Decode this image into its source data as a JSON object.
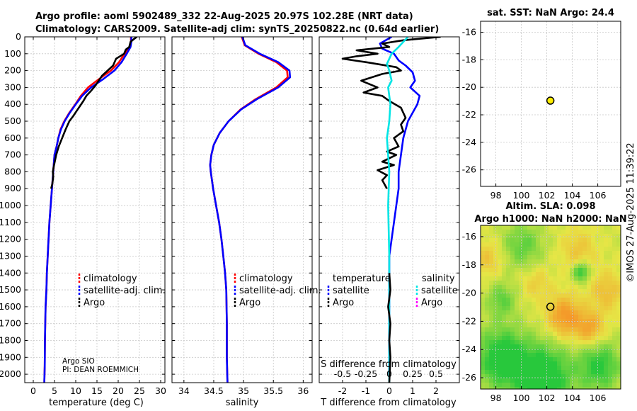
{
  "title_line1": "Argo profile: aoml 5902489_332 22-Aug-2025 20.97S 102.28E (NRT data)",
  "title_line2": "Climatology: CARS2009. Satellite-adj clim: synTS_20250822.nc (0.64d earlier)",
  "sst_title": "sat. SST: NaN Argo: 24.4",
  "sla_title1": "Altim. SLA: 0.098",
  "sla_title2": "Argo h1000: NaN h2000: NaN",
  "watermark": "©IMOS 27-Aug-2025 11:39:22",
  "credit_line1": "Argo SIO",
  "credit_line2": "PI: DEAN ROEMMICH",
  "colors": {
    "climatology": "#ff0000",
    "satellite": "#0000ff",
    "argo": "#000000",
    "sat_salinity": "#00e5e5",
    "argo_salinity": "#ff00ff",
    "marker": "#ffee00"
  },
  "chart_data": [
    {
      "type": "line",
      "id": "temperature",
      "xlabel": "temperature (deg C)",
      "ylabel": "",
      "xlim": [
        -2,
        31
      ],
      "ylim": [
        2050,
        0
      ],
      "xticks": [
        0,
        5,
        10,
        15,
        20,
        25,
        30
      ],
      "yticks": [
        0,
        100,
        200,
        300,
        400,
        500,
        600,
        700,
        800,
        900,
        1000,
        1100,
        1200,
        1300,
        1400,
        1500,
        1600,
        1700,
        1800,
        1900,
        2000
      ],
      "legend": [
        "climatology",
        "satellite-adj. clim.",
        "Argo"
      ],
      "series": [
        {
          "name": "climatology",
          "color": "#ff0000",
          "x": [
            23.0,
            23.0,
            22.8,
            21.5,
            20.2,
            18.3,
            15.5,
            12.9,
            11.2,
            9.9,
            8.5,
            7.3,
            6.4,
            5.9,
            5.5,
            5.0,
            4.7,
            4.4,
            4.1,
            3.8,
            3.6,
            3.4,
            3.2,
            3.1,
            2.9,
            2.75,
            2.7,
            2.6
          ],
          "y": [
            0,
            30,
            60,
            100,
            150,
            200,
            250,
            300,
            350,
            400,
            450,
            500,
            550,
            600,
            650,
            700,
            800,
            900,
            1000,
            1100,
            1200,
            1300,
            1400,
            1500,
            1600,
            1800,
            1950,
            2050
          ]
        },
        {
          "name": "satellite-adj. clim.",
          "color": "#0000ff",
          "x": [
            23.1,
            23.1,
            22.9,
            22.0,
            20.8,
            19.1,
            16.5,
            13.6,
            11.5,
            10.0,
            8.6,
            7.4,
            6.5,
            5.9,
            5.5,
            5.0,
            4.7,
            4.4,
            4.1,
            3.8,
            3.6,
            3.4,
            3.2,
            3.1,
            2.9,
            2.75,
            2.7,
            2.6
          ],
          "y": [
            0,
            30,
            60,
            100,
            150,
            200,
            250,
            300,
            350,
            400,
            450,
            500,
            550,
            600,
            650,
            700,
            800,
            900,
            1000,
            1100,
            1200,
            1300,
            1400,
            1500,
            1600,
            1800,
            1950,
            2050
          ]
        },
        {
          "name": "Argo",
          "color": "#000000",
          "x": [
            24.4,
            23.6,
            22.9,
            22.6,
            21.8,
            21.4,
            19.5,
            18.8,
            16.2,
            14.6,
            13.6,
            12.5,
            11.8,
            11.0,
            10.2,
            9.4,
            8.5,
            7.6,
            6.8,
            6.0,
            5.4,
            4.9,
            4.6,
            4.7,
            4.5,
            4.2
          ],
          "y": [
            0,
            15,
            30,
            60,
            75,
            100,
            130,
            170,
            230,
            290,
            320,
            350,
            380,
            410,
            440,
            470,
            500,
            550,
            600,
            650,
            700,
            760,
            800,
            830,
            870,
            900
          ]
        }
      ]
    },
    {
      "type": "line",
      "id": "salinity",
      "xlabel": "salinity",
      "ylabel": "",
      "xlim": [
        33.8,
        36.15
      ],
      "ylim": [
        2050,
        0
      ],
      "xticks": [
        34,
        34.5,
        35,
        35.5,
        36
      ],
      "legend": [
        "climatology",
        "satellite-adj. clim.",
        "Argo"
      ],
      "series": [
        {
          "name": "climatology",
          "color": "#ff0000",
          "x": [
            34.97,
            35.02,
            35.25,
            35.55,
            35.73,
            35.74,
            35.55,
            35.2,
            34.95,
            34.75,
            34.6,
            34.5,
            34.46,
            34.44,
            34.45,
            34.49,
            34.54,
            34.59,
            34.63,
            34.66,
            34.69,
            34.71,
            34.72,
            34.72,
            34.73
          ],
          "y": [
            0,
            50,
            100,
            150,
            200,
            240,
            300,
            370,
            430,
            500,
            570,
            640,
            700,
            760,
            800,
            900,
            1000,
            1100,
            1200,
            1300,
            1400,
            1500,
            1700,
            1900,
            2050
          ]
        },
        {
          "name": "satellite-adj. clim.",
          "color": "#0000ff",
          "x": [
            34.98,
            35.03,
            35.27,
            35.58,
            35.77,
            35.78,
            35.58,
            35.22,
            34.96,
            34.75,
            34.6,
            34.5,
            34.46,
            34.44,
            34.45,
            34.49,
            34.54,
            34.59,
            34.63,
            34.66,
            34.69,
            34.71,
            34.72,
            34.72,
            34.73
          ],
          "y": [
            0,
            50,
            100,
            150,
            200,
            240,
            300,
            370,
            430,
            500,
            570,
            640,
            700,
            760,
            800,
            900,
            1000,
            1100,
            1200,
            1300,
            1400,
            1500,
            1700,
            1900,
            2050
          ]
        }
      ]
    },
    {
      "type": "line",
      "id": "difference",
      "xlabel": "T difference from climatology",
      "xlabel_top": "S difference from climatology",
      "xlim": [
        -3,
        3
      ],
      "ylim": [
        2050,
        0
      ],
      "xticks": [
        -2,
        -1,
        0,
        1,
        2
      ],
      "s_ticks": [
        "-0.5",
        "-0.25",
        "0",
        "0.25",
        "0.5"
      ],
      "s_ticks_at": [
        -2,
        -1,
        0,
        1,
        2
      ],
      "legend_temperature_title": "temperature",
      "legend_salinity_title": "salinity",
      "legend_entries": [
        "satellite",
        "Argo",
        "satellite",
        "Argo"
      ],
      "series": [
        {
          "name": "satellite T diff",
          "color": "#0000ff",
          "x": [
            0.1,
            -0.4,
            -0.3,
            0.2,
            0.4,
            0.7,
            1.0,
            1.1,
            0.9,
            1.3,
            1.2,
            1.0,
            0.8,
            0.6,
            0.5,
            0.4,
            0.4,
            0.3,
            0.2,
            0.1,
            0.0,
            0.0,
            0.0
          ],
          "y": [
            0,
            40,
            70,
            100,
            140,
            170,
            210,
            260,
            300,
            350,
            400,
            450,
            500,
            600,
            700,
            800,
            900,
            1000,
            1100,
            1200,
            1300,
            1600,
            2000
          ]
        },
        {
          "name": "Argo T diff",
          "color": "#000000",
          "x": [
            2.2,
            0.6,
            -0.3,
            0.0,
            -1.4,
            -0.5,
            -1.4,
            -2.0,
            -1.0,
            0.3,
            0.5,
            -0.3,
            -1.2,
            -0.5,
            -1.1,
            -0.3,
            0.0,
            0.5,
            0.7,
            0.5,
            0.6,
            0.2,
            0.4,
            -0.1,
            0.3,
            -0.3,
            0.2,
            -0.5,
            -0.1,
            -0.3,
            -0.1
          ],
          "y": [
            0,
            20,
            40,
            60,
            80,
            100,
            115,
            130,
            150,
            180,
            200,
            220,
            260,
            300,
            330,
            350,
            380,
            420,
            480,
            520,
            560,
            600,
            650,
            680,
            700,
            740,
            760,
            790,
            820,
            850,
            900
          ]
        },
        {
          "name": "satellite S diff",
          "color": "#00e5e5",
          "x": [
            0.8,
            0.4,
            0.1,
            -0.1,
            0.0,
            0.1,
            -0.05,
            0.05,
            0.0,
            -0.1,
            0.0,
            -0.05,
            0.0,
            0.0,
            0.0
          ],
          "y": [
            0,
            60,
            100,
            160,
            200,
            260,
            300,
            400,
            500,
            600,
            800,
            1000,
            1300,
            1700,
            2050
          ]
        },
        {
          "name": "Argo S diff",
          "color": "#000000",
          "x": [
            0.0,
            0.05,
            -0.05,
            0.05,
            0.0,
            0.05,
            0.0
          ],
          "y": [
            1400,
            1500,
            1600,
            1700,
            1800,
            1900,
            2050
          ]
        }
      ]
    },
    {
      "type": "scatter",
      "id": "sst_map",
      "title": "sat. SST: NaN Argo: 24.4",
      "xlim": [
        96.8,
        107.8
      ],
      "ylim": [
        -27.2,
        -15.2
      ],
      "xticks": [
        98,
        100,
        102,
        104,
        106
      ],
      "yticks": [
        -16,
        -18,
        -20,
        -22,
        -24,
        -26
      ],
      "points": [
        {
          "x": 102.28,
          "y": -20.97
        }
      ]
    },
    {
      "type": "heatmap",
      "id": "sla_map",
      "title": "Argo h1000: NaN h2000: NaN",
      "xlim": [
        96.8,
        107.8
      ],
      "ylim": [
        -26.8,
        -15.2
      ],
      "xticks": [
        98,
        100,
        102,
        104,
        106
      ],
      "yticks": [
        -16,
        -18,
        -20,
        -22,
        -24,
        -26
      ],
      "points": [
        {
          "x": 102.28,
          "y": -20.97
        }
      ]
    }
  ]
}
